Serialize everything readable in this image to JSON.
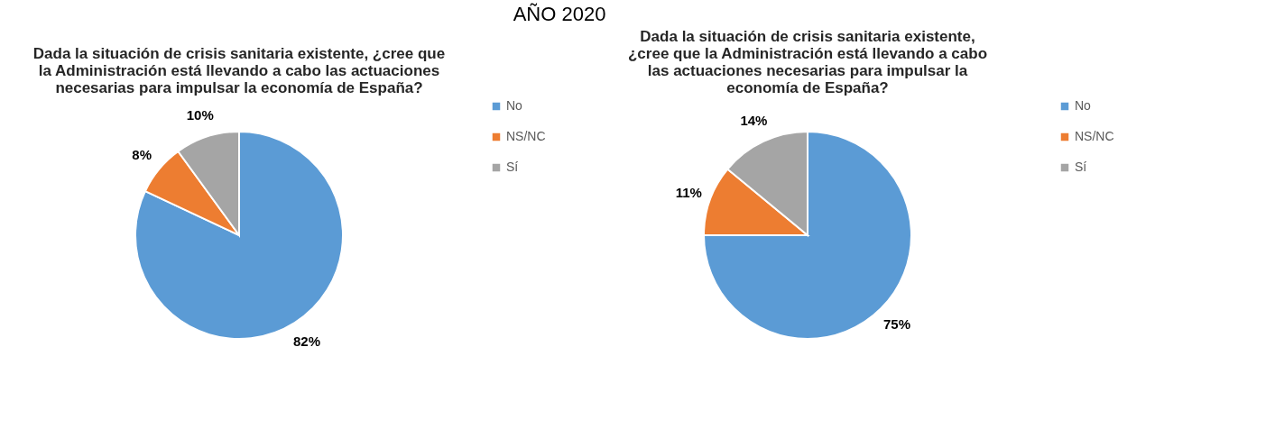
{
  "chart_data": [
    {
      "type": "pie",
      "title": "Dada la situación de crisis sanitaria existente, ¿cree que la Administración está llevando a cabo las actuaciones necesarias para impulsar la economía de España?",
      "categories": [
        "No",
        "NS/NC",
        "Sí"
      ],
      "values": [
        82,
        8,
        10
      ],
      "colors": [
        "#5b9bd5",
        "#ed7d31",
        "#a5a5a5"
      ],
      "value_labels": [
        "82%",
        "8%",
        "10%"
      ],
      "legend": "right",
      "annotations": [
        "AÑO 2020"
      ]
    },
    {
      "type": "pie",
      "title": "Dada la situación de crisis sanitaria existente, ¿cree que la Administración está llevando a cabo las actuaciones necesarias para impulsar la economía de España?",
      "categories": [
        "No",
        "NS/NC",
        "Sí"
      ],
      "values": [
        75,
        11,
        14
      ],
      "colors": [
        "#5b9bd5",
        "#ed7d31",
        "#a5a5a5"
      ],
      "value_labels": [
        "75%",
        "11%",
        "14%"
      ],
      "legend": "right"
    }
  ]
}
